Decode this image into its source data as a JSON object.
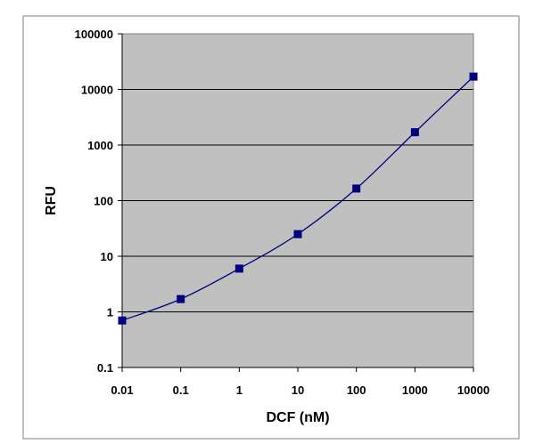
{
  "chart_data": {
    "type": "line",
    "title": "",
    "xlabel": "DCF (nM)",
    "ylabel": "RFU",
    "xscale": "log",
    "yscale": "log",
    "xlim": [
      0.01,
      10000
    ],
    "ylim": [
      0.1,
      100000
    ],
    "grid": "horizontal",
    "legend": "none",
    "x_tick_labels": [
      "0.01",
      "0.1",
      "1",
      "10",
      "100",
      "1000",
      "10000"
    ],
    "y_tick_labels": [
      "0.1",
      "1",
      "10",
      "100",
      "1000",
      "10000",
      "100000"
    ],
    "series": [
      {
        "name": "RFU",
        "marker": "square",
        "x": [
          0.01,
          0.1,
          1,
          10,
          100,
          1000,
          10000
        ],
        "y": [
          0.7,
          1.7,
          6,
          25,
          165,
          1700,
          17000
        ]
      }
    ],
    "colors": {
      "plot_background": "#c0c0c0",
      "series": "#000080",
      "grid": "#000000",
      "frame": "#808080"
    }
  }
}
